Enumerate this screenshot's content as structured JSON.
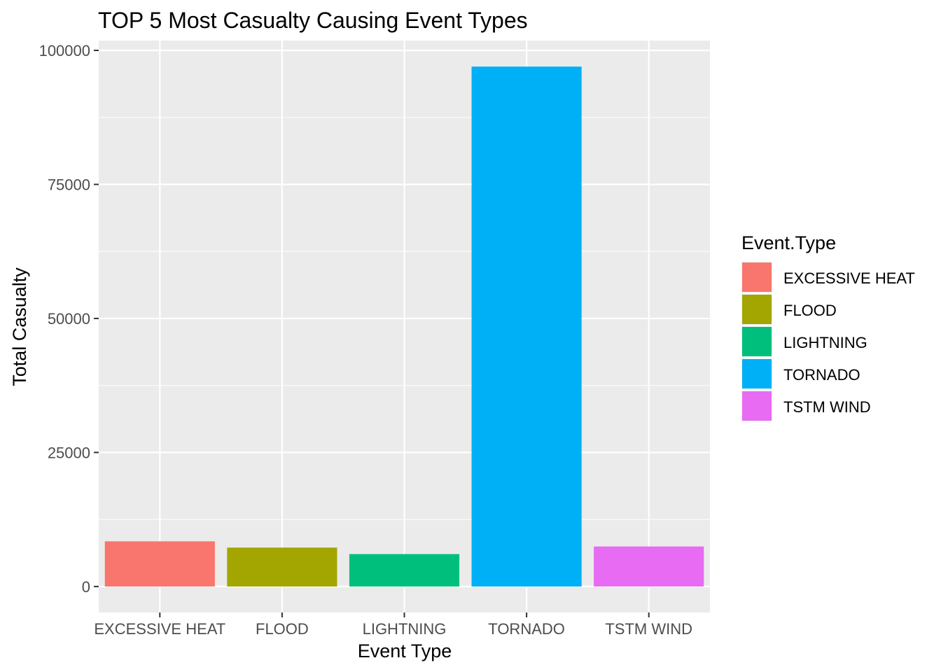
{
  "chart_data": {
    "type": "bar",
    "title": "TOP 5 Most Casualty Causing Event Types",
    "xlabel": "Event Type",
    "ylabel": "Total Casualty",
    "categories": [
      "EXCESSIVE HEAT",
      "FLOOD",
      "LIGHTNING",
      "TORNADO",
      "TSTM WIND"
    ],
    "values": [
      8428,
      7259,
      6046,
      96979,
      7461
    ],
    "colors": [
      "#F8766D",
      "#A3A500",
      "#00BF7D",
      "#00B0F6",
      "#E76BF3"
    ],
    "ylim": [
      -4849,
      101828
    ],
    "yticks": [
      0,
      25000,
      50000,
      75000,
      100000
    ],
    "ytick_labels": [
      "0",
      "25000",
      "50000",
      "75000",
      "100000"
    ],
    "grid": true,
    "legend": {
      "title": "Event.Type",
      "position": "right",
      "entries": [
        "EXCESSIVE HEAT",
        "FLOOD",
        "LIGHTNING",
        "TORNADO",
        "TSTM WIND"
      ]
    },
    "panel_background": "#EBEBEB",
    "grid_color": "#FFFFFF",
    "tick_color": "#333333"
  }
}
